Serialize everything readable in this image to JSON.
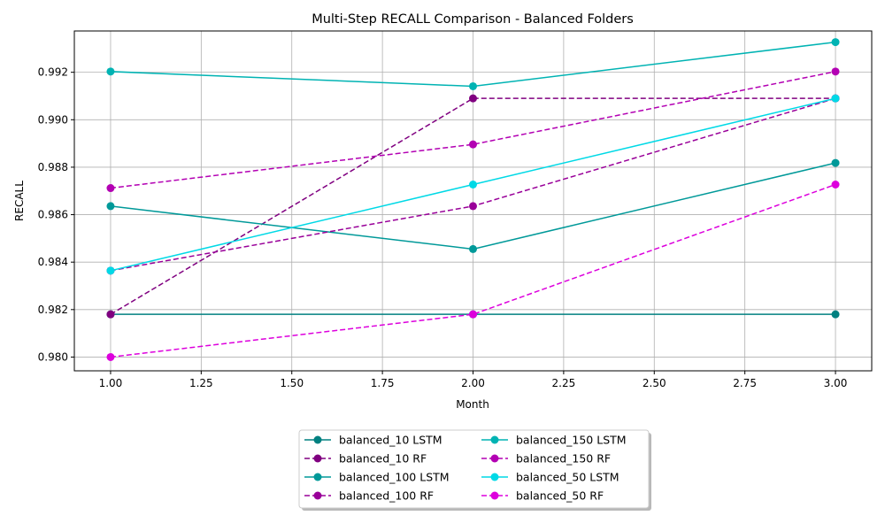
{
  "chart_data": {
    "type": "line",
    "title": "Multi-Step RECALL Comparison - Balanced Folders",
    "xlabel": "Month",
    "ylabel": "RECALL",
    "x": [
      1,
      2,
      3
    ],
    "xlim": [
      0.9,
      3.1
    ],
    "ylim": [
      0.97942,
      0.99374
    ],
    "xticks": [
      1.0,
      1.25,
      1.5,
      1.75,
      2.0,
      2.25,
      2.5,
      2.75,
      3.0
    ],
    "xtick_labels": [
      "1.00",
      "1.25",
      "1.50",
      "1.75",
      "2.00",
      "2.25",
      "2.50",
      "2.75",
      "3.00"
    ],
    "yticks": [
      0.98,
      0.982,
      0.984,
      0.986,
      0.988,
      0.99,
      0.992
    ],
    "ytick_labels": [
      "0.980",
      "0.982",
      "0.984",
      "0.986",
      "0.988",
      "0.990",
      "0.992"
    ],
    "grid": true,
    "legend_position": "bottom-center",
    "legend_columns": 2,
    "series": [
      {
        "name": "balanced_10 LSTM",
        "color": "#008080",
        "dash": "solid",
        "values": [
          0.9818,
          0.9818,
          0.9818
        ]
      },
      {
        "name": "balanced_10 RF",
        "color": "#800080",
        "dash": "dashed",
        "values": [
          0.9818,
          0.9909,
          0.9909
        ]
      },
      {
        "name": "balanced_100 LSTM",
        "color": "#009999",
        "dash": "solid",
        "values": [
          0.98636,
          0.98455,
          0.98818
        ]
      },
      {
        "name": "balanced_100 RF",
        "color": "#990099",
        "dash": "dashed",
        "values": [
          0.98364,
          0.98636,
          0.9909
        ]
      },
      {
        "name": "balanced_150 LSTM",
        "color": "#00b3b3",
        "dash": "solid",
        "values": [
          0.99203,
          0.99141,
          0.99327
        ]
      },
      {
        "name": "balanced_150 RF",
        "color": "#b300b3",
        "dash": "dashed",
        "values": [
          0.98712,
          0.98896,
          0.99203
        ]
      },
      {
        "name": "balanced_50 LSTM",
        "color": "#00d9e6",
        "dash": "solid",
        "values": [
          0.98364,
          0.98727,
          0.9909
        ]
      },
      {
        "name": "balanced_50 RF",
        "color": "#dd00dd",
        "dash": "dashed",
        "values": [
          0.98,
          0.9818,
          0.98727
        ]
      }
    ]
  }
}
